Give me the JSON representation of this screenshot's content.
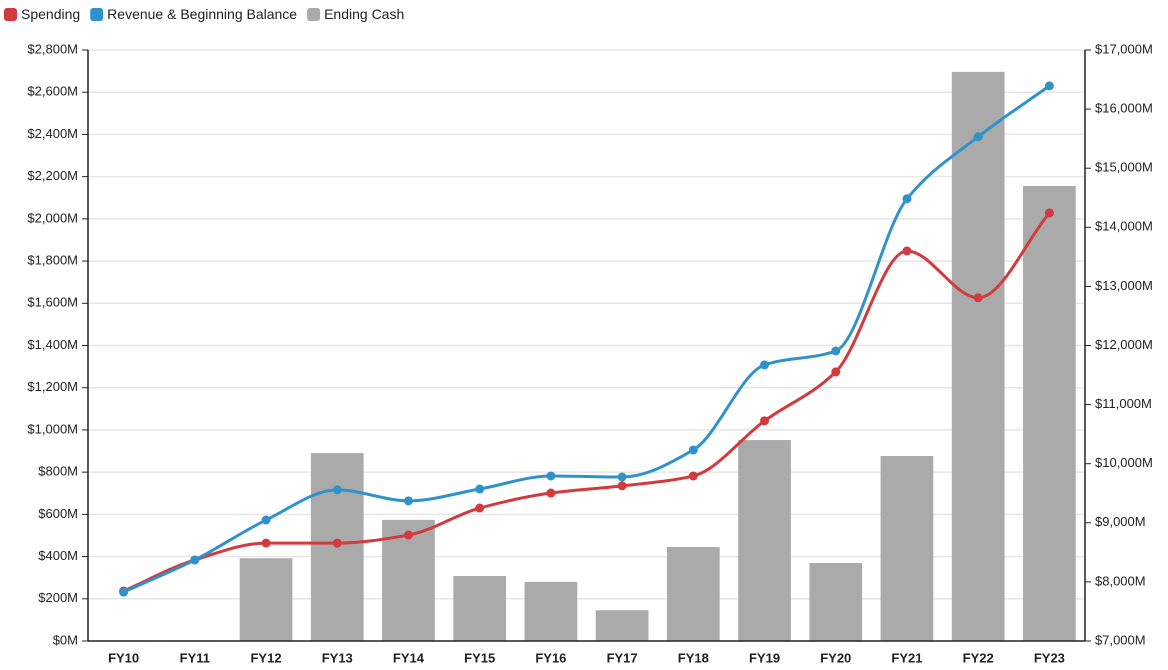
{
  "chart_data": {
    "type": "combo",
    "categories": [
      "FY10",
      "FY11",
      "FY12",
      "FY13",
      "FY14",
      "FY15",
      "FY16",
      "FY17",
      "FY18",
      "FY19",
      "FY20",
      "FY21",
      "FY22",
      "FY23"
    ],
    "series": [
      {
        "name": "Spending",
        "color": "#d23a3d",
        "type": "line",
        "axis": "y",
        "values": [
          237,
          384,
          464,
          464,
          502,
          630,
          701,
          735,
          782,
          1043,
          1275,
          1848,
          1626,
          2028
        ]
      },
      {
        "name": "Revenue & Beginning Balance",
        "color": "#2f93c9",
        "type": "line",
        "axis": "y",
        "values": [
          232,
          384,
          573,
          716,
          664,
          720,
          782,
          777,
          905,
          1308,
          1374,
          2095,
          2389,
          2630
        ]
      },
      {
        "name": "Ending Cash",
        "color": "#aaaaaa",
        "type": "bar",
        "axis": "y2",
        "values": [
          7010,
          7010,
          8400,
          10180,
          9050,
          8100,
          8000,
          7520,
          8590,
          10400,
          8320,
          10130,
          16630,
          14700
        ]
      }
    ],
    "ylim": [
      0,
      2800
    ],
    "yticks": [
      {
        "value": 0,
        "label": "$0M"
      },
      {
        "value": 200,
        "label": "$200M"
      },
      {
        "value": 400,
        "label": "$400M"
      },
      {
        "value": 600,
        "label": "$600M"
      },
      {
        "value": 800,
        "label": "$800M"
      },
      {
        "value": 1000,
        "label": "$1,000M"
      },
      {
        "value": 1200,
        "label": "$1,200M"
      },
      {
        "value": 1400,
        "label": "$1,400M"
      },
      {
        "value": 1600,
        "label": "$1,600M"
      },
      {
        "value": 1800,
        "label": "$1,800M"
      },
      {
        "value": 2000,
        "label": "$2,000M"
      },
      {
        "value": 2200,
        "label": "$2,200M"
      },
      {
        "value": 2400,
        "label": "$2,400M"
      },
      {
        "value": 2600,
        "label": "$2,600M"
      },
      {
        "value": 2800,
        "label": "$2,800M"
      }
    ],
    "y2lim": [
      7000,
      17000
    ],
    "y2ticks": [
      {
        "value": 7000,
        "label": "$7,000M"
      },
      {
        "value": 8000,
        "label": "$8,000M"
      },
      {
        "value": 9000,
        "label": "$9,000M"
      },
      {
        "value": 10000,
        "label": "$10,000M"
      },
      {
        "value": 11000,
        "label": "$11,000M"
      },
      {
        "value": 12000,
        "label": "$12,000M"
      },
      {
        "value": 13000,
        "label": "$13,000M"
      },
      {
        "value": 14000,
        "label": "$14,000M"
      },
      {
        "value": 15000,
        "label": "$15,000M"
      },
      {
        "value": 16000,
        "label": "$16,000M"
      },
      {
        "value": 17000,
        "label": "$17,000M"
      }
    ],
    "grid": true,
    "legend": "top-left"
  }
}
